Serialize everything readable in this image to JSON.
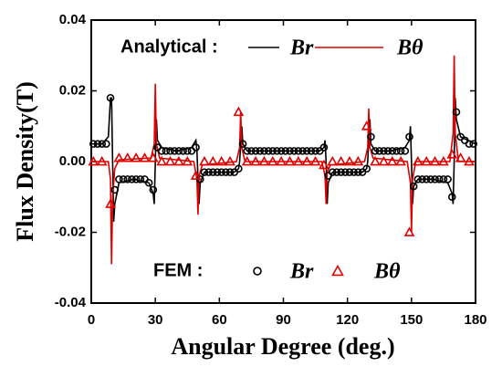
{
  "chart_data": {
    "type": "line",
    "xlabel": "Angular Degree (deg.)",
    "ylabel": "Flux Density(T)",
    "xlim": [
      0,
      180
    ],
    "xticks": [
      0,
      30,
      60,
      90,
      120,
      150,
      180
    ],
    "ylim": [
      -0.04,
      0.04
    ],
    "yticks": [
      0.04,
      0.02,
      {
        "value": 0,
        "label": "0.00"
      },
      -0.02,
      -0.04
    ],
    "annotations": [
      "Analytical :",
      "FEM :"
    ],
    "series": [
      {
        "name": "Br",
        "color": "#000000",
        "style": "line",
        "x": [
          0,
          5,
          8,
          9,
          9.5,
          10,
          10.5,
          11,
          13,
          20,
          27,
          29,
          29.5,
          30,
          30.5,
          31,
          33,
          40,
          47,
          49,
          49.5,
          50,
          50.5,
          51,
          53,
          60,
          67,
          69,
          69.5,
          70,
          70.5,
          71,
          73,
          90,
          107,
          109,
          109.5,
          110,
          110.5,
          111,
          113,
          120,
          127,
          129,
          129.5,
          130,
          130.5,
          131,
          133,
          140,
          147,
          149,
          149.5,
          150,
          150.5,
          151,
          153,
          160,
          167,
          169,
          169.5,
          170,
          170.5,
          171,
          173,
          180
        ],
        "values": [
          0.005,
          0.005,
          0.007,
          0.018,
          0.018,
          0,
          -0.017,
          -0.012,
          -0.006,
          -0.005,
          -0.006,
          -0.009,
          -0.012,
          0,
          0.012,
          0.006,
          0.004,
          0.003,
          0.004,
          0.006,
          0.003,
          -0.005,
          -0.012,
          -0.006,
          -0.003,
          -0.003,
          -0.003,
          -0.002,
          0,
          0.005,
          0.01,
          0.005,
          0.003,
          0.003,
          0.003,
          0.004,
          0.006,
          0,
          -0.012,
          -0.006,
          -0.003,
          -0.003,
          -0.003,
          -0.002,
          0,
          0.007,
          0.012,
          0.005,
          0.003,
          0.003,
          0.004,
          0.006,
          0.01,
          0,
          -0.012,
          -0.007,
          -0.005,
          -0.005,
          -0.006,
          -0.009,
          -0.012,
          0,
          0.018,
          0.012,
          0.007,
          0.005
        ]
      },
      {
        "name": "Bθ",
        "color": "#e00000",
        "style": "line",
        "x": [
          0,
          8,
          9,
          9.5,
          10,
          11,
          13,
          28,
          29.5,
          30,
          30.5,
          32,
          48,
          49.5,
          50,
          50.5,
          52,
          68,
          69.5,
          70,
          70.5,
          72,
          108,
          109.5,
          110,
          110.5,
          112,
          128,
          129.5,
          130,
          130.5,
          132,
          148,
          149.5,
          150,
          150.5,
          152,
          168,
          169.5,
          170,
          170.5,
          172,
          180
        ],
        "values": [
          0,
          0,
          -0.005,
          -0.029,
          -0.01,
          -0.002,
          0.0005,
          0.001,
          0.005,
          0.022,
          0.005,
          0.001,
          0,
          -0.005,
          -0.015,
          -0.004,
          -0.001,
          0,
          0.004,
          0.014,
          0.004,
          0,
          0,
          -0.004,
          -0.012,
          -0.003,
          -0.001,
          0,
          0.004,
          0.015,
          0.004,
          0.001,
          0,
          -0.006,
          -0.02,
          -0.005,
          0,
          0,
          0.008,
          0.03,
          0.008,
          0,
          0
        ]
      },
      {
        "name": "Br",
        "color": "#000000",
        "style": "circle",
        "x": [
          1,
          3,
          5,
          7,
          9,
          11,
          13,
          15,
          17,
          19,
          21,
          23,
          25,
          27,
          29,
          31,
          33,
          35,
          37,
          39,
          41,
          43,
          45,
          47,
          49,
          51,
          53,
          55,
          57,
          59,
          61,
          63,
          65,
          67,
          69,
          71,
          73,
          75,
          77,
          79,
          81,
          83,
          85,
          87,
          89,
          91,
          93,
          95,
          97,
          99,
          101,
          103,
          105,
          107,
          109,
          111,
          113,
          115,
          117,
          119,
          121,
          123,
          125,
          127,
          129,
          131,
          133,
          135,
          137,
          139,
          141,
          143,
          145,
          147,
          149,
          151,
          153,
          155,
          157,
          159,
          161,
          163,
          165,
          167,
          169,
          171,
          173,
          175,
          177,
          179
        ],
        "values": [
          0.005,
          0.005,
          0.005,
          0.005,
          0.018,
          -0.008,
          -0.005,
          -0.005,
          -0.005,
          -0.005,
          -0.005,
          -0.005,
          -0.005,
          -0.006,
          -0.008,
          0.004,
          0.003,
          0.003,
          0.003,
          0.003,
          0.003,
          0.003,
          0.003,
          0.003,
          0.004,
          -0.005,
          -0.003,
          -0.003,
          -0.003,
          -0.003,
          -0.003,
          -0.003,
          -0.003,
          -0.003,
          -0.002,
          0.005,
          0.003,
          0.003,
          0.003,
          0.003,
          0.003,
          0.003,
          0.003,
          0.003,
          0.003,
          0.003,
          0.003,
          0.003,
          0.003,
          0.003,
          0.003,
          0.003,
          0.003,
          0.003,
          0.004,
          -0.004,
          -0.003,
          -0.003,
          -0.003,
          -0.003,
          -0.003,
          -0.003,
          -0.003,
          -0.003,
          -0.002,
          0.007,
          0.003,
          0.003,
          0.003,
          0.003,
          0.003,
          0.003,
          0.003,
          0.003,
          0.007,
          -0.007,
          -0.005,
          -0.005,
          -0.005,
          -0.005,
          -0.005,
          -0.005,
          -0.005,
          -0.005,
          -0.01,
          0.014,
          0.007,
          0.006,
          0.005,
          0.005
        ]
      },
      {
        "name": "Bθ",
        "color": "#e00000",
        "style": "triangle",
        "x": [
          1,
          5,
          9,
          13,
          17,
          21,
          25,
          29,
          33,
          37,
          41,
          45,
          49,
          53,
          57,
          61,
          65,
          69,
          73,
          77,
          81,
          85,
          89,
          93,
          97,
          101,
          105,
          109,
          113,
          117,
          121,
          125,
          129,
          133,
          137,
          141,
          145,
          149,
          153,
          157,
          161,
          165,
          169,
          173,
          177
        ],
        "values": [
          0,
          0,
          -0.012,
          0.001,
          0.001,
          0.001,
          0.001,
          0.001,
          0,
          0,
          0,
          0,
          -0.004,
          0,
          0,
          0,
          0,
          0.014,
          0,
          0,
          0,
          0,
          0,
          0,
          0,
          0,
          0,
          -0.001,
          0,
          0,
          0,
          0,
          0.01,
          0,
          0,
          0,
          0,
          -0.02,
          0,
          0,
          0,
          0,
          0.002,
          0.001,
          0
        ]
      }
    ]
  }
}
